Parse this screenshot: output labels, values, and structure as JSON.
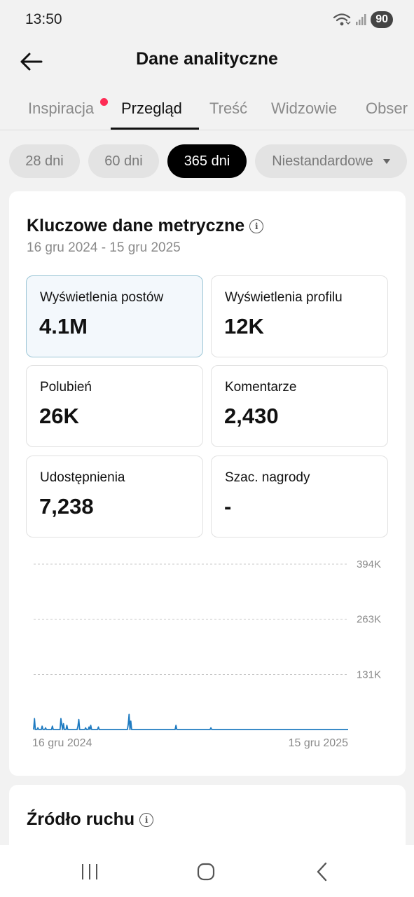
{
  "status_bar": {
    "time": "13:50",
    "battery": "90",
    "icons": [
      "wifi-icon",
      "signal-icon"
    ]
  },
  "header": {
    "title": "Dane analityczne",
    "back_icon": "arrow-left-icon"
  },
  "tabs": [
    {
      "label": "Inspiracja",
      "has_dot": true
    },
    {
      "label": "Przegląd",
      "active": true
    },
    {
      "label": "Treść"
    },
    {
      "label": "Widzowie"
    },
    {
      "label": "Obser"
    }
  ],
  "filters": [
    {
      "label": "28 dni"
    },
    {
      "label": "60 dni"
    },
    {
      "label": "365 dni",
      "active": true
    },
    {
      "label": "Niestandardowe",
      "dropdown": true
    }
  ],
  "key_metrics": {
    "title": "Kluczowe dane metryczne",
    "date_range": "16 gru 2024 - 15 gru 2025",
    "metrics": [
      {
        "label": "Wyświetlenia postów",
        "value": "4.1M",
        "selected": true
      },
      {
        "label": "Wyświetlenia profilu",
        "value": "12K"
      },
      {
        "label": "Polubień",
        "value": "26K"
      },
      {
        "label": "Komentarze",
        "value": "2,430"
      },
      {
        "label": "Udostępnienia",
        "value": "7,238"
      },
      {
        "label": "Szac. nagrody",
        "value": "-"
      }
    ]
  },
  "chart_data": {
    "type": "line",
    "x_start_label": "16 gru 2024",
    "x_end_label": "15 gru 2025",
    "y_tick_labels": [
      "394K",
      "263K",
      "131K"
    ],
    "y_ticks": [
      394000,
      263000,
      131000
    ],
    "ylim": [
      0,
      394000
    ],
    "grid": true,
    "color": "#1f7bc1",
    "series": [
      {
        "values": [
          0,
          26000,
          0,
          0,
          0,
          4000,
          0,
          0,
          0,
          0,
          8000,
          0,
          0,
          0,
          4000,
          0,
          0,
          0,
          0,
          0,
          0,
          0,
          8000,
          0,
          0,
          0,
          0,
          0,
          0,
          0,
          0,
          0,
          26000,
          12000,
          0,
          14000,
          0,
          0,
          0,
          10000,
          0,
          0,
          0,
          0,
          0,
          0,
          0,
          0,
          0,
          0,
          0,
          0,
          8000,
          24000,
          0,
          0,
          0,
          0,
          0,
          0,
          0,
          4000,
          0,
          0,
          0,
          6000,
          0,
          10000,
          0,
          0,
          0,
          0,
          0,
          0,
          0,
          0,
          6000,
          0,
          0,
          0,
          0,
          0,
          0,
          0,
          0,
          0,
          0,
          0,
          0,
          0,
          0,
          0,
          0,
          0,
          0,
          0,
          0,
          0,
          0,
          0,
          0,
          0,
          0,
          0,
          0,
          0,
          0,
          0,
          0,
          0,
          0,
          12000,
          36000,
          0,
          20000,
          0,
          0,
          0,
          0,
          0,
          0,
          0,
          0,
          0,
          0,
          0,
          0,
          0,
          0,
          0,
          0,
          0,
          0,
          0,
          0,
          0,
          0,
          0,
          0,
          0,
          0,
          0,
          0,
          0,
          0,
          0,
          0,
          0,
          0,
          0,
          0,
          0,
          0,
          0,
          0,
          0,
          0,
          0,
          0,
          0,
          0,
          0,
          0,
          0,
          0,
          0,
          0,
          10000,
          0,
          0,
          0,
          0,
          0,
          0,
          0,
          0,
          0,
          0,
          0,
          0,
          0,
          0,
          0,
          0,
          0,
          0,
          0,
          0,
          0,
          0,
          0,
          0,
          0,
          0,
          0,
          0,
          0,
          0,
          0,
          0,
          0,
          0,
          0,
          0,
          0,
          0,
          0,
          0,
          4000,
          0,
          0,
          0,
          0,
          0,
          0,
          0,
          0,
          0,
          0,
          0,
          0,
          0,
          0,
          0,
          0,
          0,
          0,
          0,
          0,
          0,
          0,
          0,
          0,
          0,
          0,
          0,
          0,
          0,
          0,
          0,
          0,
          0,
          0,
          0,
          0,
          0,
          0,
          0,
          0,
          0,
          0,
          0,
          0,
          0,
          0,
          0,
          0,
          0,
          0,
          0,
          0,
          0,
          0,
          0,
          0,
          0,
          0,
          0,
          0,
          0,
          0,
          0,
          0,
          0,
          0,
          0,
          0,
          0,
          0,
          0,
          0,
          0,
          0,
          0,
          0,
          0,
          0,
          0,
          0,
          0,
          0,
          0,
          0,
          0,
          0,
          0,
          0,
          0,
          0,
          0,
          0,
          0,
          0,
          0,
          0,
          0,
          0,
          0,
          0,
          0,
          0,
          0,
          0,
          0,
          0,
          0,
          0,
          0,
          0,
          0,
          0,
          0,
          0,
          0,
          0,
          0,
          0,
          0,
          0,
          0,
          0,
          0,
          0,
          0,
          0,
          0,
          0,
          0,
          0,
          0,
          0,
          0,
          0,
          0,
          0,
          0,
          0,
          0,
          0,
          0,
          0,
          0,
          0,
          0,
          0,
          0,
          0,
          0,
          0,
          0,
          0,
          0,
          0,
          0,
          0,
          0,
          0,
          0,
          0,
          0
        ]
      }
    ]
  },
  "traffic_source": {
    "title": "Źródło ruchu"
  },
  "nav_bar": {
    "icons": [
      "recent-apps-icon",
      "home-icon",
      "back-icon"
    ]
  }
}
